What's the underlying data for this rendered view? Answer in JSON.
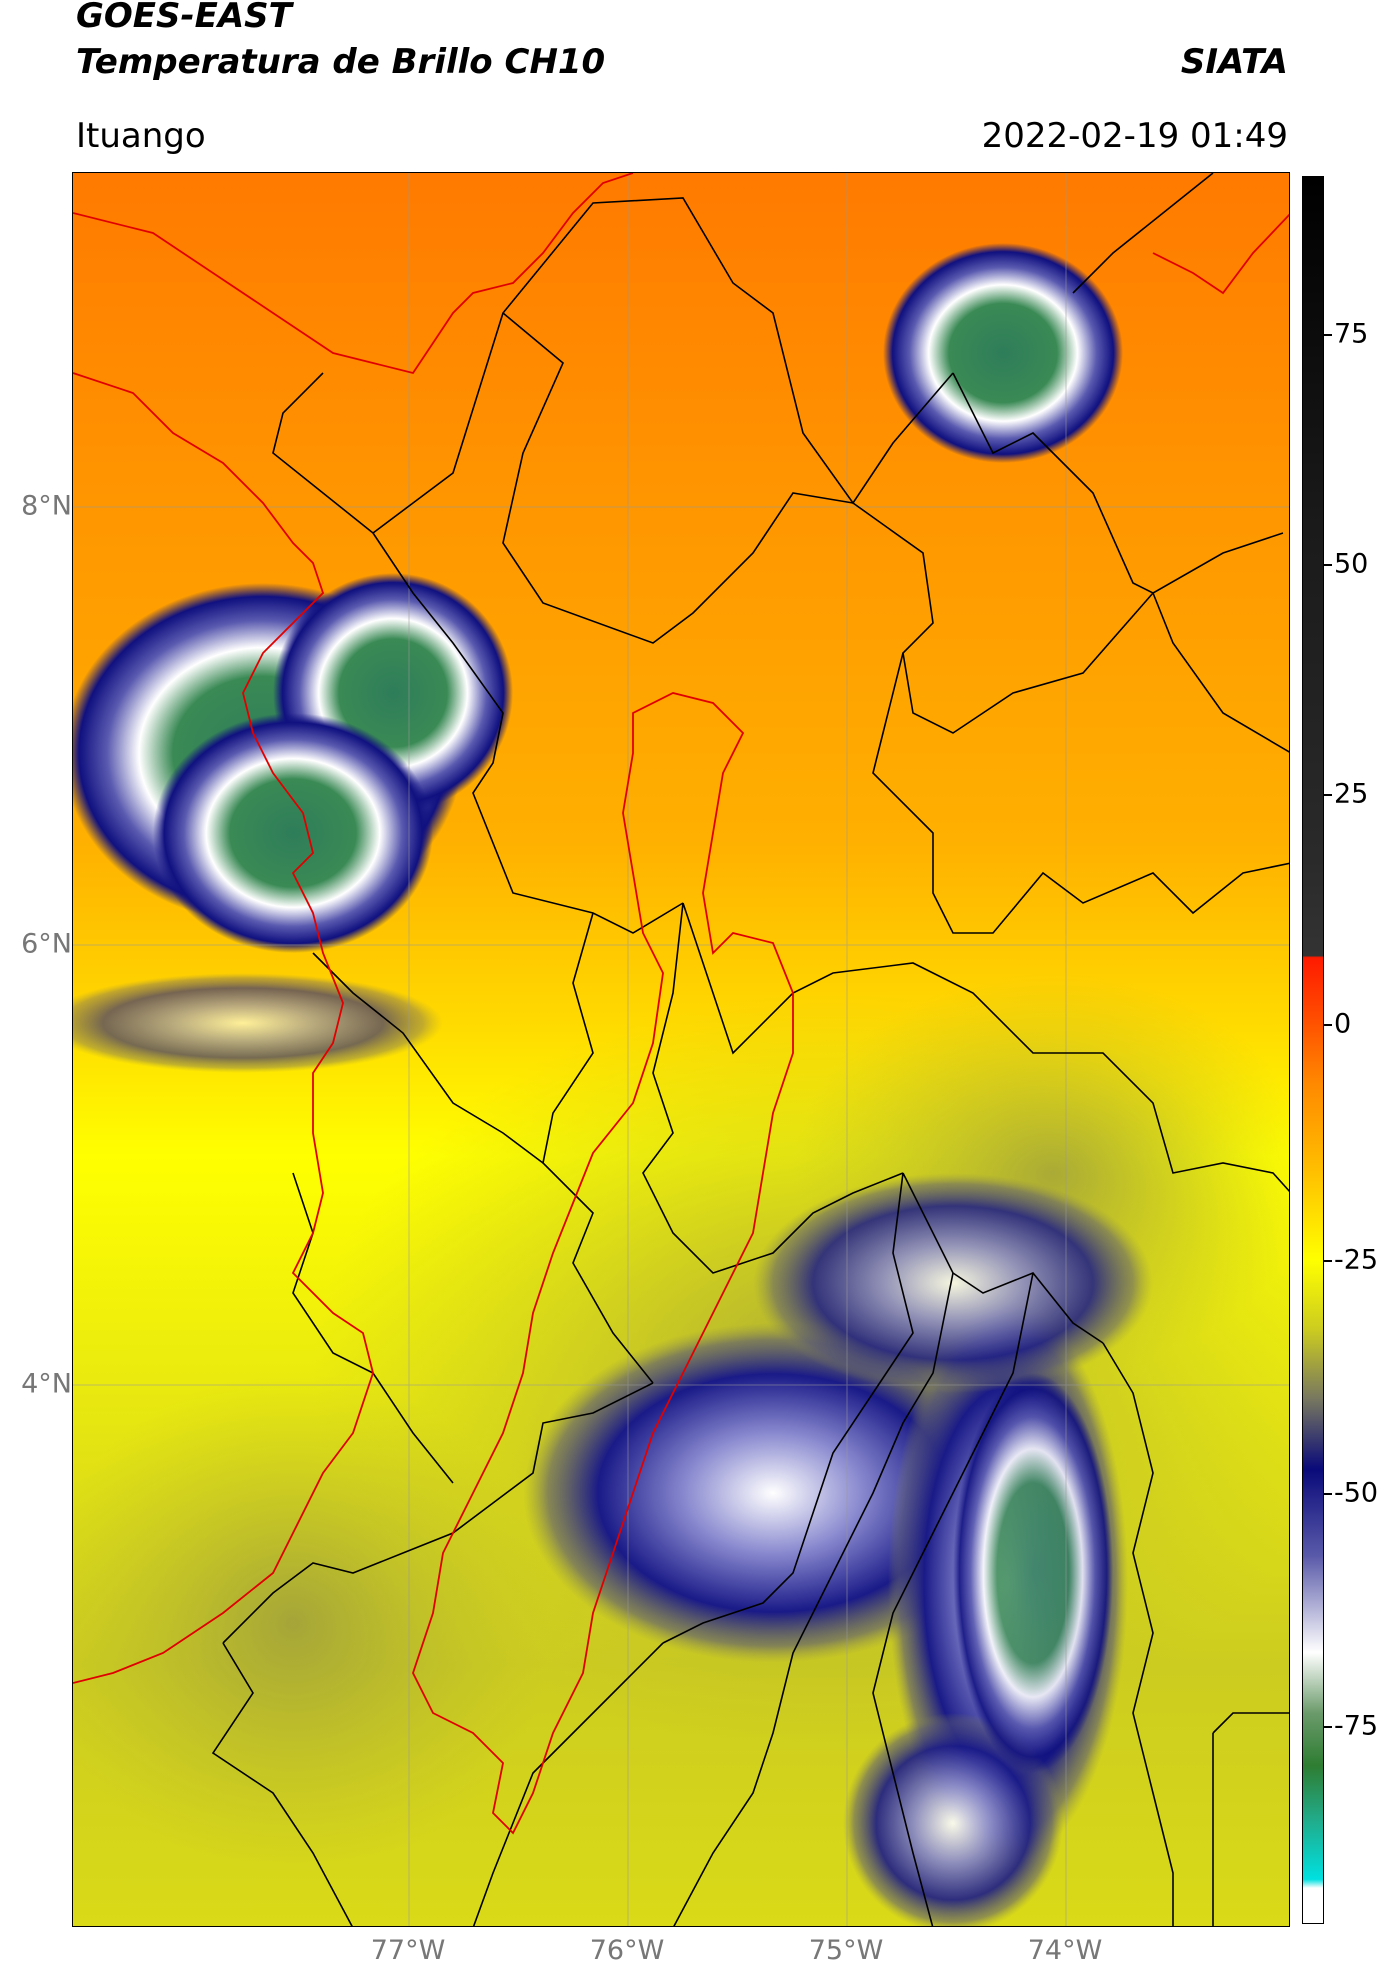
{
  "header": {
    "title_line1": "GOES-EAST",
    "title_line2": "Temperatura de Brillo CH10",
    "org": "SIATA",
    "place": "Ituango",
    "datetime": "2022-02-19 01:49"
  },
  "map": {
    "lat_labels": [
      "8°N",
      "6°N",
      "4°N"
    ],
    "lon_labels": [
      "77°W",
      "76°W",
      "75°W",
      "74°W"
    ]
  },
  "colorbar": {
    "ticks": [
      "75",
      "50",
      "25",
      "0",
      "-25",
      "-50",
      "-75"
    ],
    "colors": [
      "#000000",
      "#ff0000",
      "#ff8c00",
      "#ffff00",
      "#0a0a7a",
      "#ffffff",
      "#2e7d32",
      "#00e0e0"
    ]
  }
}
